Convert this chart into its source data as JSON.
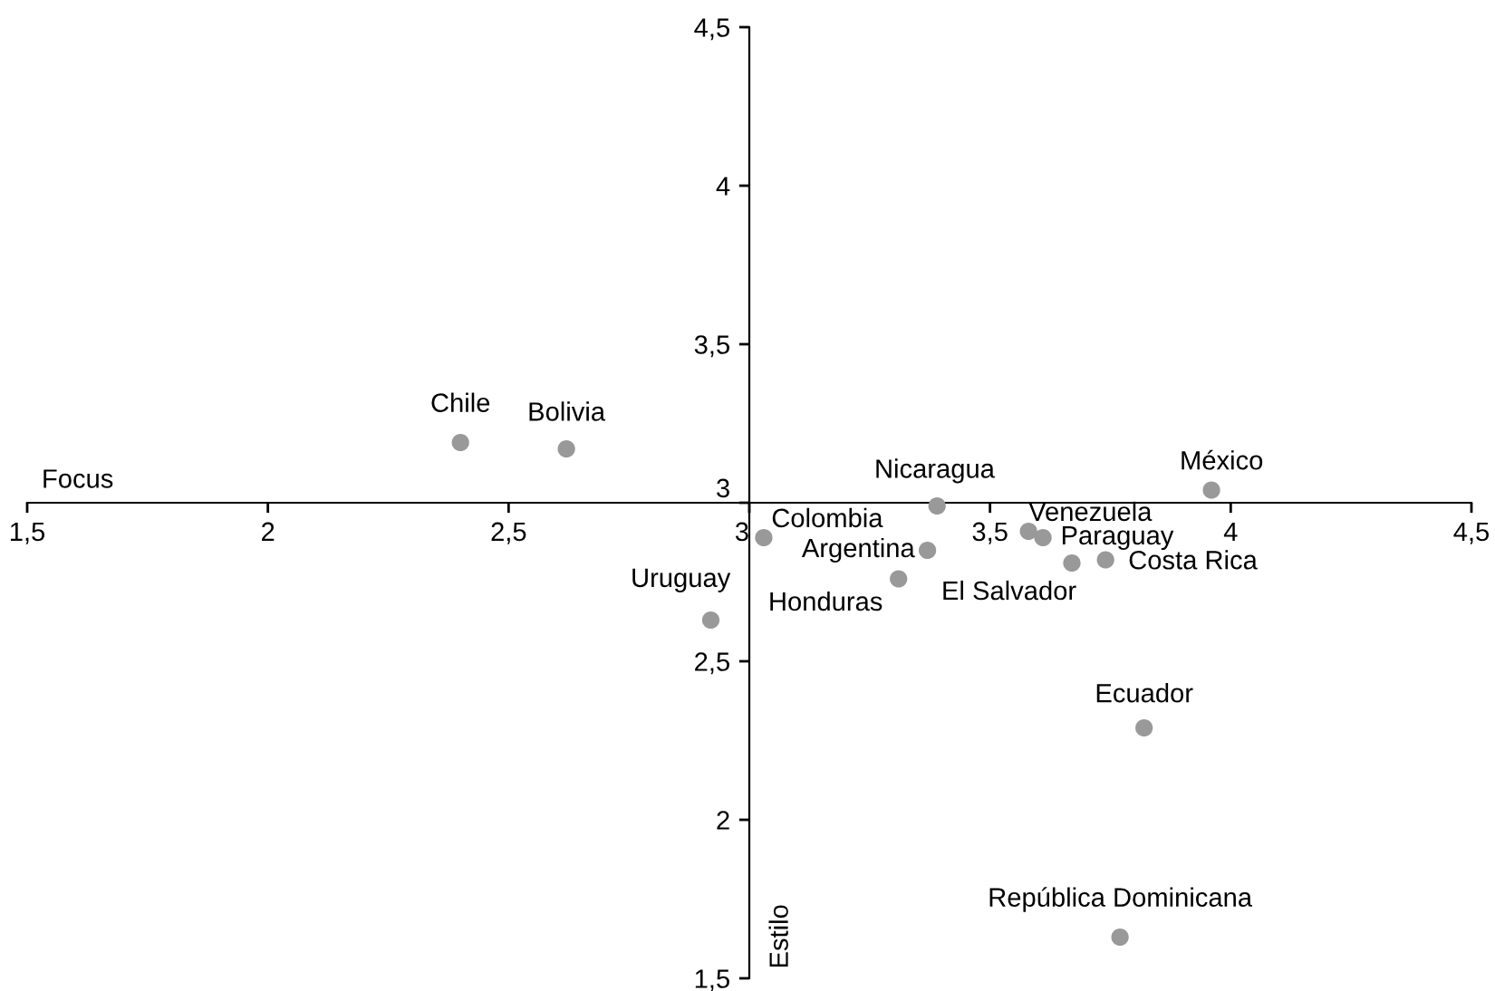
{
  "chart_data": {
    "type": "scatter",
    "xlabel": "Focus",
    "ylabel": "Estilo",
    "xlim": [
      1.5,
      4.5
    ],
    "ylim": [
      1.5,
      4.5
    ],
    "xticks": [
      {
        "value": 1.5,
        "label": "1,5"
      },
      2,
      {
        "value": 2.5,
        "label": "2,5"
      },
      3,
      {
        "value": 3.5,
        "label": "3,5"
      },
      4,
      {
        "value": 4.5,
        "label": "4,5"
      }
    ],
    "yticks": [
      {
        "value": 1.5,
        "label": "1,5"
      },
      2,
      {
        "value": 2.5,
        "label": "2,5"
      },
      3,
      {
        "value": 3.5,
        "label": "3,5"
      },
      4,
      {
        "value": 4.5,
        "label": "4,5"
      }
    ],
    "grid": false,
    "marker": "circle",
    "series": [
      {
        "color": "#999999",
        "x": [
          2.4,
          2.62,
          3.03,
          3.39,
          3.96,
          3.58,
          3.61,
          3.37,
          3.74,
          3.67,
          3.31,
          2.92,
          3.82,
          3.77
        ],
        "values": [
          3.19,
          3.17,
          2.89,
          2.99,
          3.04,
          2.91,
          2.89,
          2.85,
          2.82,
          2.81,
          2.76,
          2.63,
          2.29,
          1.63
        ]
      }
    ],
    "annotations": [
      {
        "text": "Chile",
        "x": 2.4,
        "y": 3.19
      },
      {
        "text": "Bolivia",
        "x": 2.62,
        "y": 3.17
      },
      {
        "text": "Colombia",
        "x": 3.03,
        "y": 2.89
      },
      {
        "text": "Nicaragua",
        "x": 3.39,
        "y": 2.99
      },
      {
        "text": "México",
        "x": 3.96,
        "y": 3.04
      },
      {
        "text": "Venezuela",
        "x": 3.58,
        "y": 2.91
      },
      {
        "text": "Paraguay",
        "x": 3.61,
        "y": 2.89
      },
      {
        "text": "Argentina",
        "x": 3.37,
        "y": 2.85
      },
      {
        "text": "Costa Rica",
        "x": 3.74,
        "y": 2.82
      },
      {
        "text": "El Salvador",
        "x": 3.67,
        "y": 2.81
      },
      {
        "text": "Honduras",
        "x": 3.31,
        "y": 2.76
      },
      {
        "text": "Uruguay",
        "x": 2.92,
        "y": 2.63
      },
      {
        "text": "Ecuador",
        "x": 3.82,
        "y": 2.29
      },
      {
        "text": "República Dominicana",
        "x": 3.77,
        "y": 1.63
      }
    ]
  }
}
